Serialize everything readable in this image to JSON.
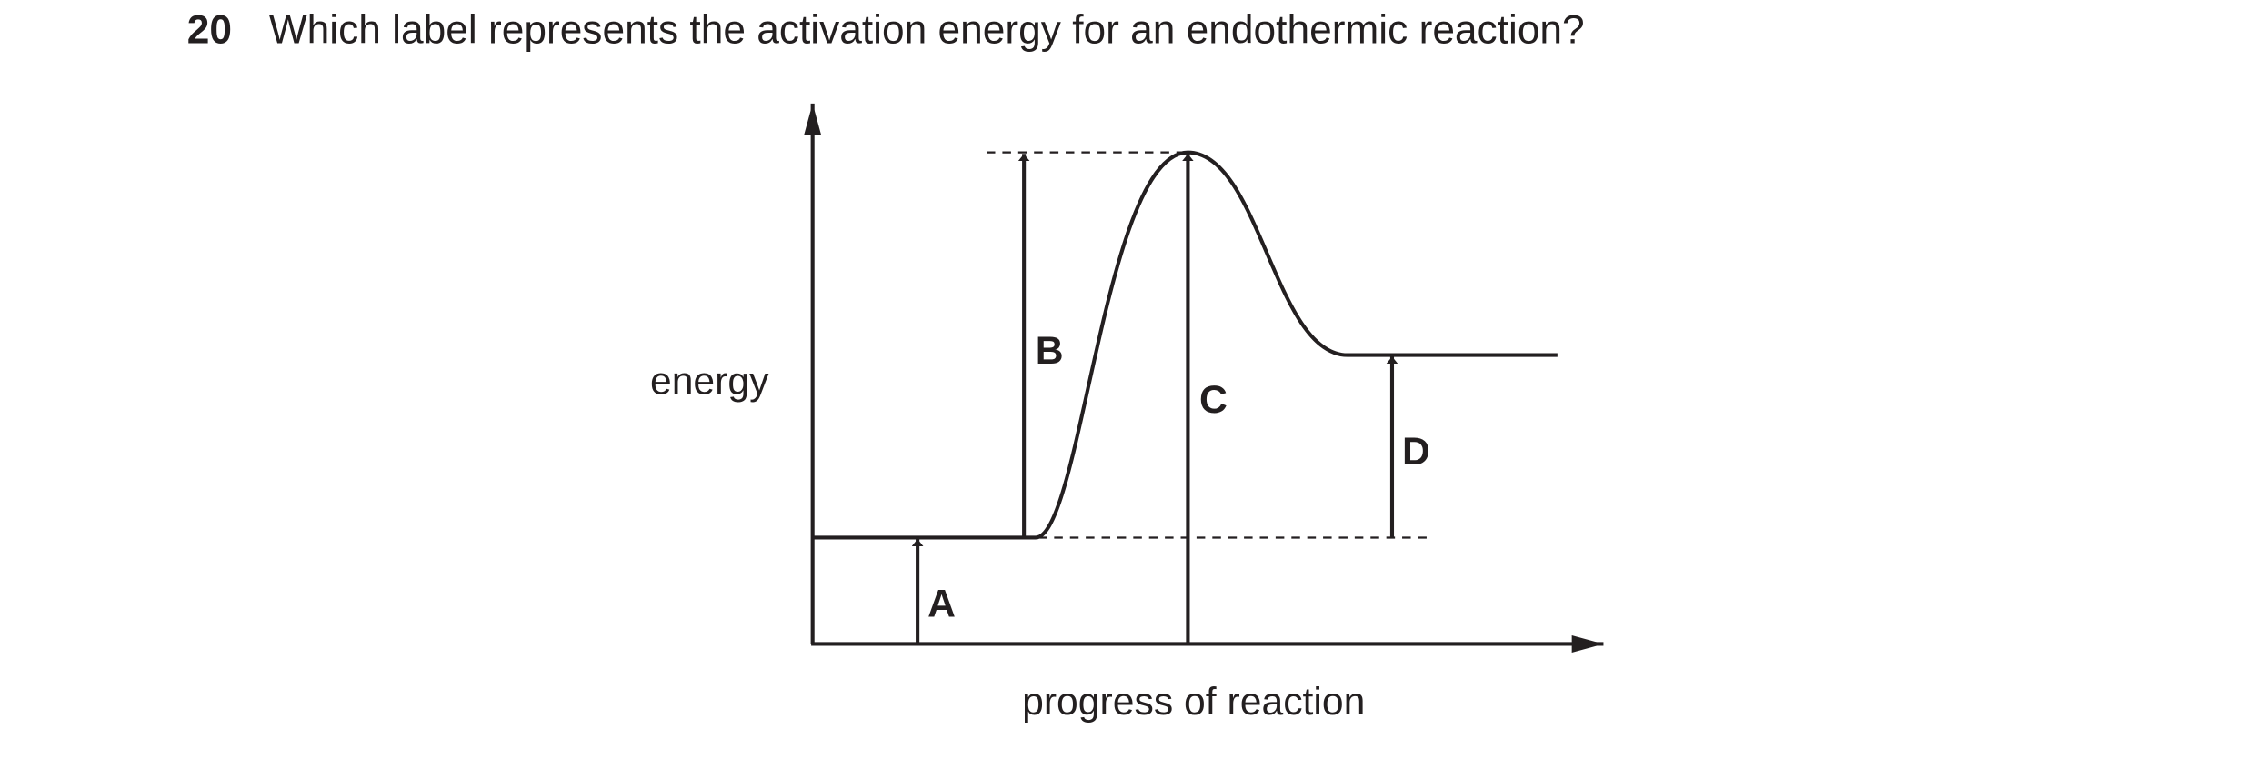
{
  "question": {
    "number": "20",
    "text": "Which label represents the activation energy for an endothermic reaction?"
  },
  "diagram": {
    "y_axis_label": "energy",
    "x_axis_label": "progress of reaction",
    "labels": [
      "A",
      "B",
      "C",
      "D"
    ]
  }
}
